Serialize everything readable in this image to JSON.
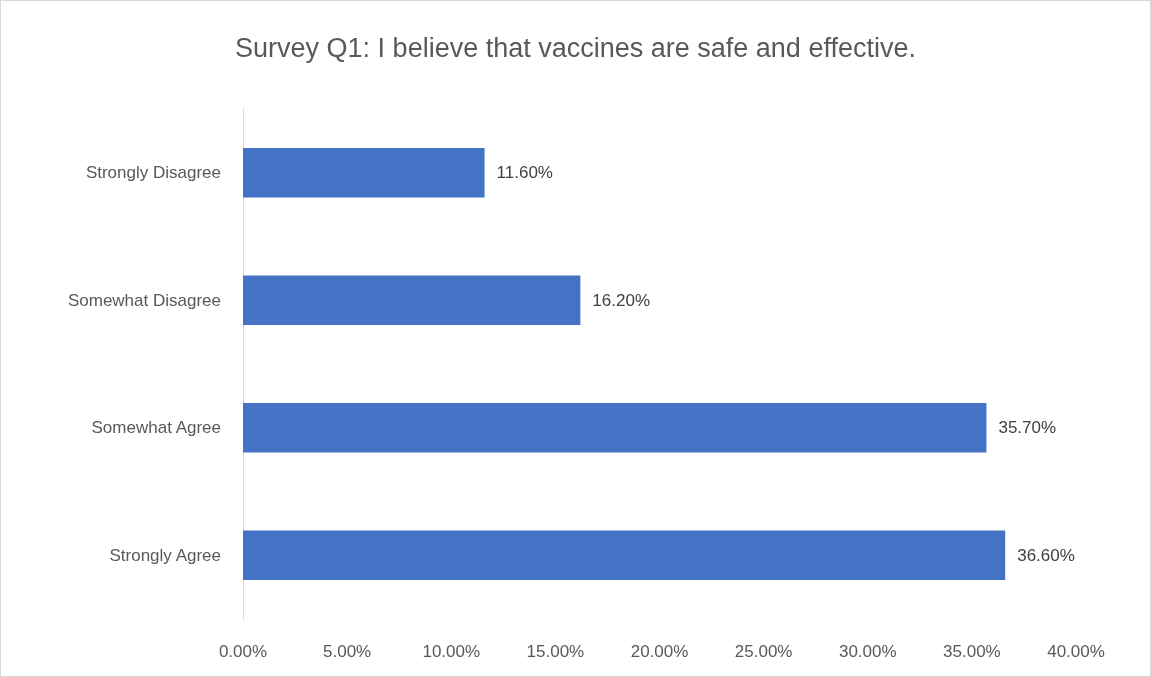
{
  "chart_data": {
    "type": "bar",
    "orientation": "horizontal",
    "title": "Survey Q1: I believe that vaccines are safe and effective.",
    "categories": [
      "Strongly Disagree",
      "Somewhat Disagree",
      "Somewhat Agree",
      "Strongly Agree"
    ],
    "values": [
      11.6,
      16.2,
      35.7,
      36.6
    ],
    "value_labels": [
      "11.60%",
      "16.20%",
      "35.70%",
      "36.60%"
    ],
    "color": "#4472c4",
    "xlim": [
      0,
      40
    ],
    "xticks": [
      {
        "value": 0,
        "label": "0.00%"
      },
      {
        "value": 5,
        "label": "5.00%"
      },
      {
        "value": 10,
        "label": "10.00%"
      },
      {
        "value": 15,
        "label": "15.00%"
      },
      {
        "value": 20,
        "label": "20.00%"
      },
      {
        "value": 25,
        "label": "25.00%"
      },
      {
        "value": 30,
        "label": "30.00%"
      },
      {
        "value": 35,
        "label": "35.00%"
      },
      {
        "value": 40,
        "label": "40.00%"
      }
    ],
    "grid": false
  }
}
